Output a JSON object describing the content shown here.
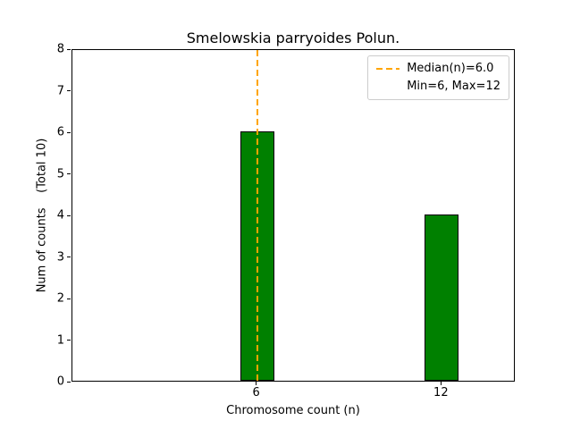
{
  "chart_data": {
    "type": "bar",
    "title": "Smelowskia parryoides Polun.",
    "xlabel": "Chromosome count (n)",
    "ylabel": "Num of counts    (Total 10)",
    "x": [
      6,
      12
    ],
    "values": [
      6,
      4
    ],
    "total_counts": 10,
    "bar_color": "#008000",
    "bar_edge_color": "#000000",
    "bar_width_units": 1.1,
    "xlim": [
      0,
      14.4
    ],
    "ylim": [
      0,
      8
    ],
    "yticks": [
      0,
      1,
      2,
      3,
      4,
      5,
      6,
      7,
      8
    ],
    "xticks": [
      {
        "value": 6,
        "label": "6"
      },
      {
        "value": 12,
        "label": "12"
      }
    ],
    "median_line": {
      "x": 6,
      "color": "#ffa500",
      "style": "dashed"
    },
    "legend": {
      "position": "upper right",
      "items": [
        {
          "label": "Median(n)=6.0",
          "sample": "dashed-orange-line"
        },
        {
          "label": "Min=6, Max=12",
          "sample": "none"
        }
      ]
    },
    "grid": false
  }
}
